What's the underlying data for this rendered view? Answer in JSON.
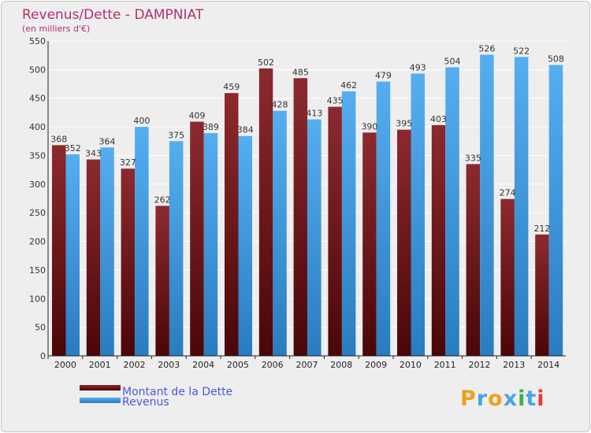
{
  "chart_data": {
    "type": "bar",
    "title": "Revenus/Dette - DAMPNIAT",
    "subtitle": "(en milliers d'€)",
    "categories": [
      "2000",
      "2001",
      "2002",
      "2003",
      "2004",
      "2005",
      "2006",
      "2007",
      "2008",
      "2009",
      "2010",
      "2011",
      "2012",
      "2013",
      "2014"
    ],
    "series": [
      {
        "name": "Montant de la Dette",
        "values": [
          368,
          343,
          327,
          262,
          409,
          459,
          502,
          485,
          435,
          390,
          395,
          403,
          335,
          274,
          212
        ],
        "color": "#7a1f22"
      },
      {
        "name": "Revenus",
        "values": [
          352,
          364,
          400,
          375,
          389,
          384,
          428,
          413,
          462,
          479,
          493,
          504,
          526,
          522,
          508
        ],
        "color": "#4aa3e6"
      }
    ],
    "ylim": [
      0,
      550
    ],
    "yticks": [
      "0",
      "50",
      "100",
      "150",
      "200",
      "250",
      "300",
      "350",
      "400",
      "450",
      "500",
      "550"
    ],
    "grid": true,
    "legend_position": "bottom-left"
  },
  "logo": {
    "text": "Proxiti",
    "letters": [
      "P",
      "r",
      "o",
      "x",
      "i",
      "t",
      "i"
    ],
    "colors": [
      "#f0a020",
      "#4aa3e6",
      "#f0a020",
      "#4aa3e6",
      "#3cb04a",
      "#4aa3e6",
      "#e83a3a"
    ]
  },
  "colors": {
    "title": "#b03070",
    "legend_text": "#4a5ad8",
    "grid": "#ffffff",
    "axis": "#222222"
  }
}
